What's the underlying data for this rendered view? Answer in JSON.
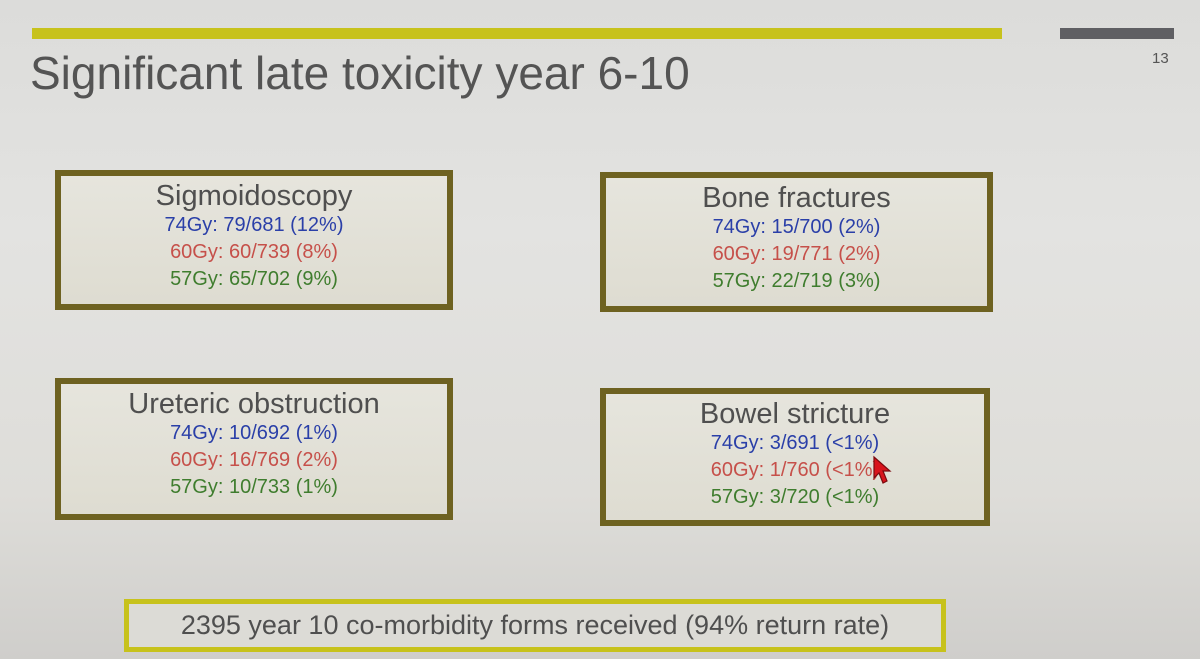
{
  "slide": {
    "title": "Significant late toxicity year 6-10",
    "page_number": "13",
    "colors": {
      "accent_bar": "#c7c21c",
      "corner_bar": "#5f5f63",
      "box_border": "#6e6221",
      "dose_74": "#2a3fa8",
      "dose_60": "#c6504a",
      "dose_57": "#3f7d2e"
    }
  },
  "boxes": {
    "sigmoidoscopy": {
      "heading": "Sigmoidoscopy",
      "lines": [
        "74Gy: 79/681 (12%)",
        "60Gy: 60/739 (8%)",
        "57Gy: 65/702 (9%)"
      ]
    },
    "bone_fractures": {
      "heading": "Bone fractures",
      "lines": [
        "74Gy: 15/700 (2%)",
        "60Gy: 19/771 (2%)",
        "57Gy: 22/719 (3%)"
      ]
    },
    "ureteric_obstruction": {
      "heading": "Ureteric obstruction",
      "lines": [
        "74Gy: 10/692 (1%)",
        "60Gy: 16/769 (2%)",
        "57Gy: 10/733 (1%)"
      ]
    },
    "bowel_stricture": {
      "heading": "Bowel stricture",
      "lines": [
        "74Gy: 3/691 (<1%)",
        "60Gy: 1/760 (<1%)",
        "57Gy: 3/720 (<1%)"
      ]
    }
  },
  "footer": {
    "text": "2395 year 10 co-morbidity forms received (94% return rate)"
  },
  "pointer": {
    "icon": "laser-pointer-cursor-icon",
    "color": "#d8141c"
  }
}
